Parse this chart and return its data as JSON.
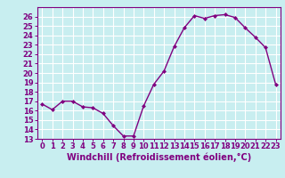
{
  "x": [
    0,
    1,
    2,
    3,
    4,
    5,
    6,
    7,
    8,
    9,
    10,
    11,
    12,
    13,
    14,
    15,
    16,
    17,
    18,
    19,
    20,
    21,
    22,
    23
  ],
  "y": [
    16.7,
    16.1,
    17.0,
    17.0,
    16.4,
    16.3,
    15.7,
    14.4,
    13.3,
    13.3,
    16.5,
    18.8,
    20.2,
    22.8,
    24.8,
    26.1,
    25.8,
    26.1,
    26.2,
    25.9,
    24.8,
    23.8,
    22.7,
    18.8
  ],
  "line_color": "#800080",
  "marker": "D",
  "marker_size": 2.0,
  "linewidth": 1.0,
  "xlabel": "Windchill (Refroidissement éolien,°C)",
  "xlim": [
    -0.5,
    23.5
  ],
  "ylim": [
    13,
    27
  ],
  "yticks": [
    13,
    14,
    15,
    16,
    17,
    18,
    19,
    20,
    21,
    22,
    23,
    24,
    25,
    26
  ],
  "xticks": [
    0,
    1,
    2,
    3,
    4,
    5,
    6,
    7,
    8,
    9,
    10,
    11,
    12,
    13,
    14,
    15,
    16,
    17,
    18,
    19,
    20,
    21,
    22,
    23
  ],
  "bg_color": "#c8eef0",
  "grid_color": "#ffffff",
  "tick_color": "#800080",
  "label_color": "#800080",
  "xlabel_fontsize": 7.0,
  "tick_fontsize": 6.0,
  "fig_width": 3.2,
  "fig_height": 2.0,
  "dpi": 100
}
